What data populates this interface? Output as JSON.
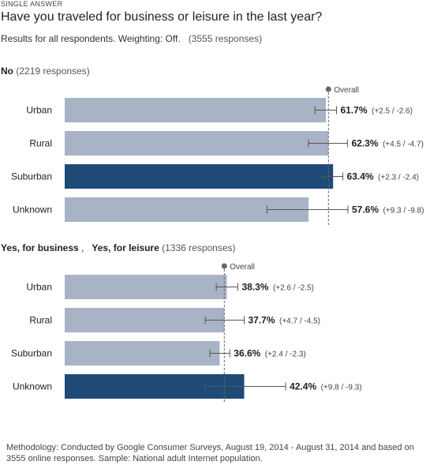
{
  "header": {
    "question_type": "SINGLE ANSWER",
    "question": "Have you traveled for business or leisure in the last year?",
    "results_prefix": "Results for all respondents. Weighting: Off.",
    "results_count": "(3555 responses)"
  },
  "overall_label": "Overall",
  "colors": {
    "bar_light": "#a8b3c5",
    "bar_dark": "#1f4a78",
    "overall_line": "#666666",
    "error_bar": "#555555"
  },
  "chart_data": [
    {
      "type": "bar",
      "orientation": "horizontal",
      "title_parts": [
        "No"
      ],
      "responses": "(2219 responses)",
      "categories": [
        "Urban",
        "Rural",
        "Suburban",
        "Unknown"
      ],
      "values": [
        61.7,
        62.3,
        63.4,
        57.6
      ],
      "error_plus": [
        2.5,
        4.5,
        2.3,
        9.3
      ],
      "error_minus": [
        2.6,
        4.7,
        2.4,
        9.8
      ],
      "value_labels": [
        "61.7%",
        "62.3%",
        "63.4%",
        "57.6%"
      ],
      "error_labels": [
        "(+2.5 / -2.6)",
        "(+4.5 / -4.7)",
        "(+2.3 / -2.4)",
        "(+9.3 / -9.8)"
      ],
      "highlight_index": 2,
      "overall": 62.3,
      "xlim": [
        0,
        82
      ]
    },
    {
      "type": "bar",
      "orientation": "horizontal",
      "title_parts": [
        "Yes, for business",
        "Yes, for leisure"
      ],
      "responses": "(1336 responses)",
      "categories": [
        "Urban",
        "Rural",
        "Suburban",
        "Unknown"
      ],
      "values": [
        38.3,
        37.7,
        36.6,
        42.4
      ],
      "error_plus": [
        2.6,
        4.7,
        2.4,
        9.8
      ],
      "error_minus": [
        2.5,
        4.5,
        2.3,
        9.3
      ],
      "value_labels": [
        "38.3%",
        "37.7%",
        "36.6%",
        "42.4%"
      ],
      "error_labels": [
        "(+2.6 / -2.5)",
        "(+4.7 / -4.5)",
        "(+2.4 / -2.3)",
        "(+9.8 / -9.3)"
      ],
      "highlight_index": 3,
      "overall": 37.7,
      "xlim": [
        0,
        82
      ]
    }
  ],
  "methodology": "Methodology: Conducted by Google Consumer Surveys, August 19, 2014 - August 31, 2014 and based on 3555 online responses. Sample: National adult Internet population."
}
